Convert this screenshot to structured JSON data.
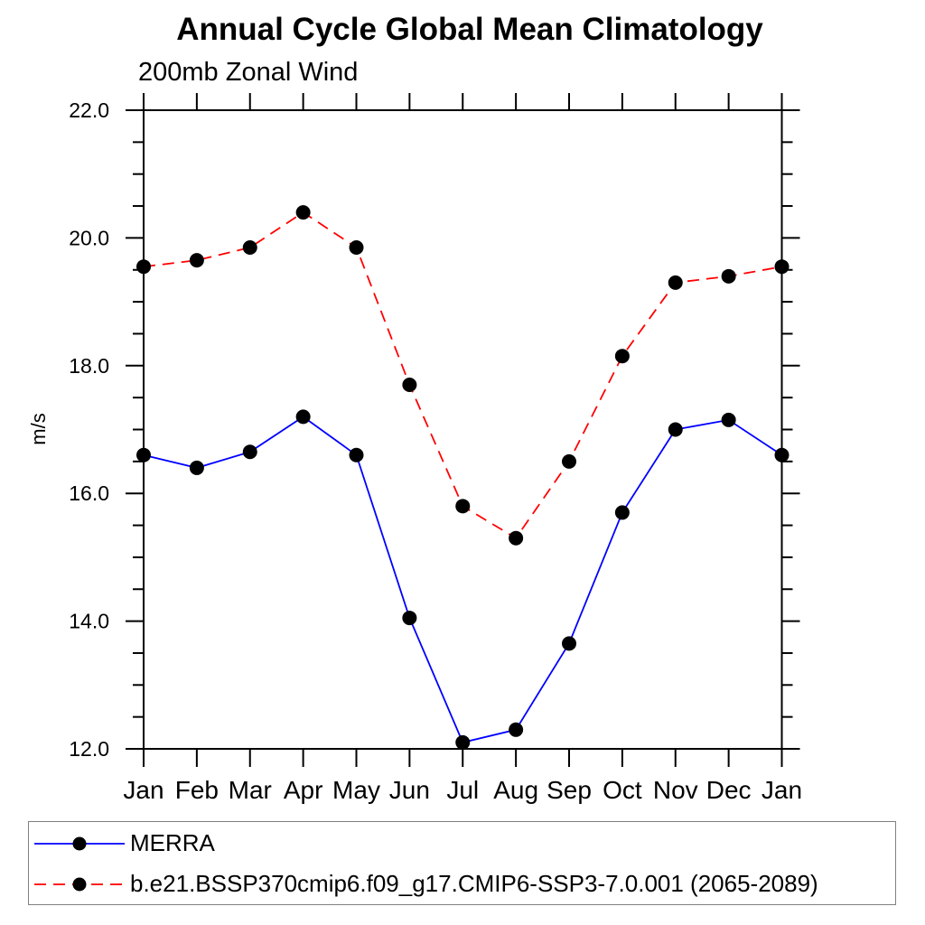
{
  "chart_data": {
    "type": "line",
    "title": "Annual Cycle Global Mean Climatology",
    "subtitle": "200mb Zonal Wind",
    "ylabel": "m/s",
    "xlabel": "",
    "categories": [
      "Jan",
      "Feb",
      "Mar",
      "Apr",
      "May",
      "Jun",
      "Jul",
      "Aug",
      "Sep",
      "Oct",
      "Nov",
      "Dec",
      "Jan"
    ],
    "ylim": [
      12.0,
      22.0
    ],
    "y_major_step": 2.0,
    "y_minor_step": 0.5,
    "y_tick_labels": [
      "12.0",
      "14.0",
      "16.0",
      "18.0",
      "20.0",
      "22.0"
    ],
    "grid": false,
    "legend_position": "bottom-left-box",
    "axis_color": "#000000",
    "marker": "filled-circle",
    "marker_color": "#000000",
    "series": [
      {
        "name": "MERRA",
        "color": "#0000ff",
        "linestyle": "solid",
        "dash": "none",
        "values": [
          16.6,
          16.4,
          16.65,
          17.2,
          16.6,
          14.05,
          12.1,
          12.3,
          13.65,
          15.7,
          17.0,
          17.15,
          16.6
        ]
      },
      {
        "name": "b.e21.BSSP370cmip6.f09_g17.CMIP6-SSP3-7.0.001 (2065-2089)",
        "color": "#ff0000",
        "linestyle": "dashed",
        "dash": "13,8",
        "values": [
          19.55,
          19.65,
          19.85,
          20.4,
          19.85,
          17.7,
          15.8,
          15.3,
          16.5,
          18.15,
          19.3,
          19.4,
          19.55
        ]
      }
    ]
  }
}
